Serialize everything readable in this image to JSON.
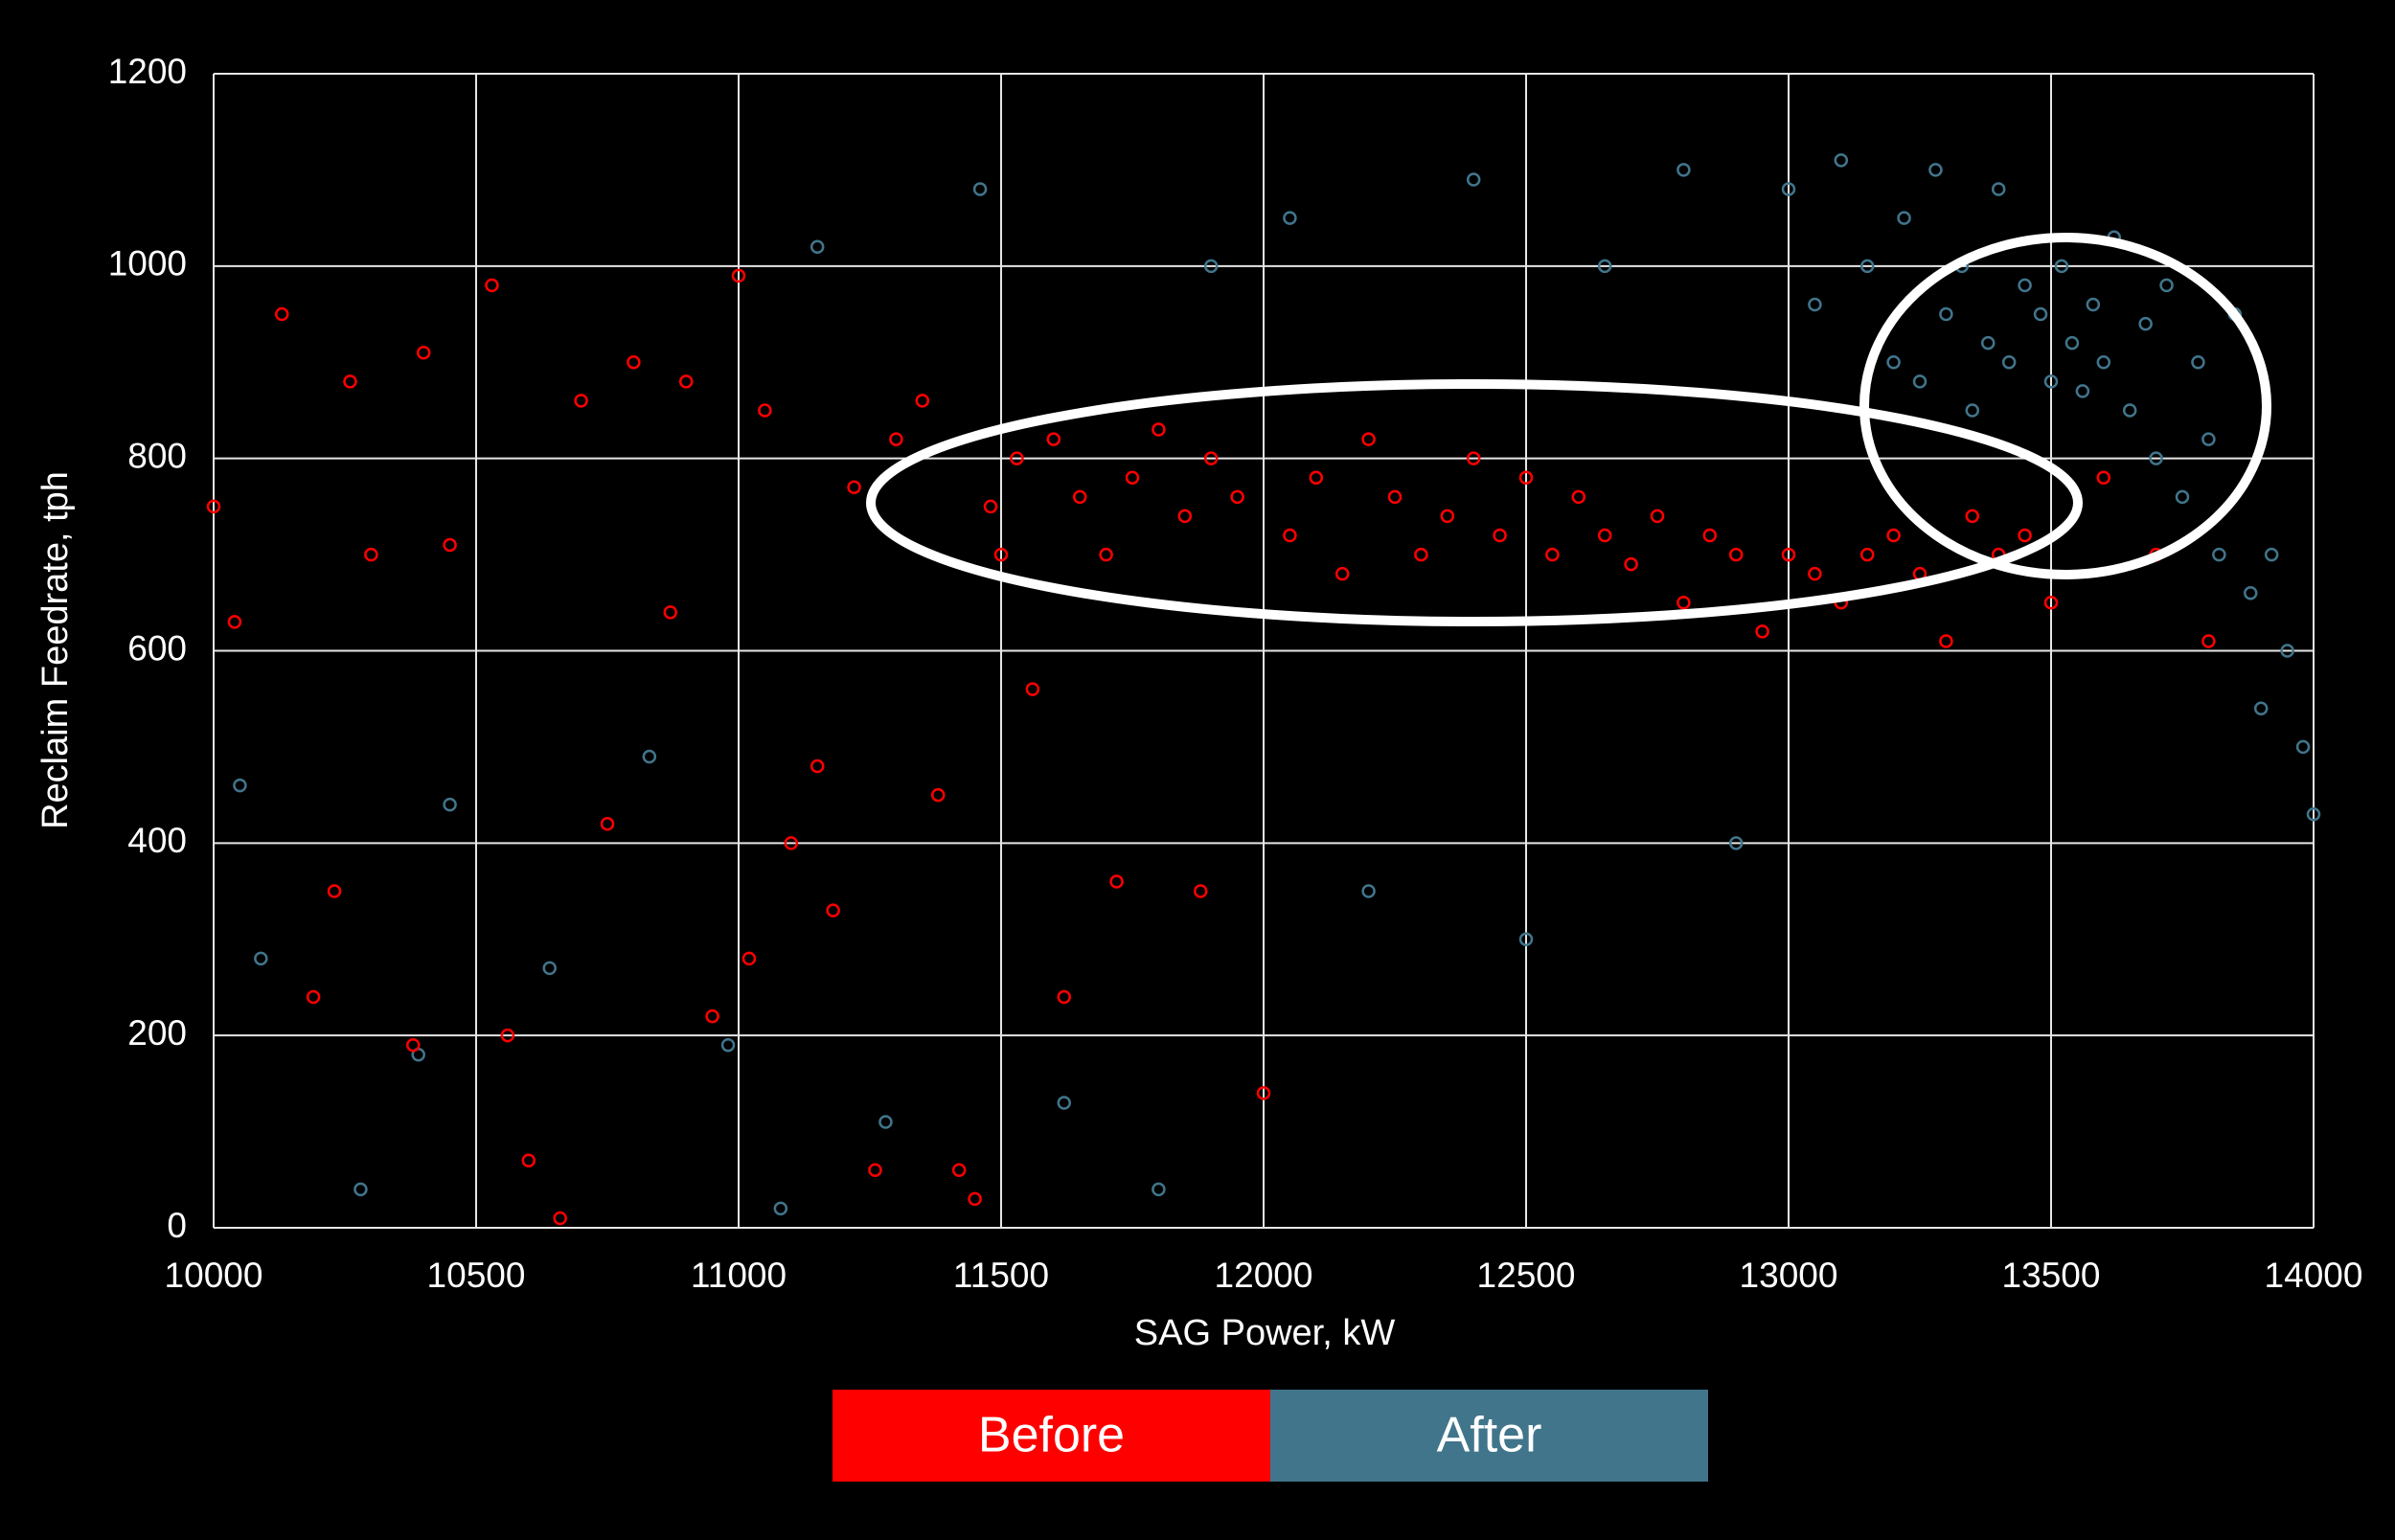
{
  "chart_data": {
    "type": "scatter",
    "x_label": "SAG Power, kW",
    "y_label": "Reclaim Feedrate, tph",
    "xlim": [
      10000,
      14000
    ],
    "xticks": [
      10000,
      10500,
      11000,
      11500,
      12000,
      12500,
      13000,
      13500,
      14000
    ],
    "ylim": [
      0,
      1200
    ],
    "yticks": [
      0,
      200,
      400,
      600,
      800,
      1000,
      1200
    ],
    "grid": true,
    "series": [
      {
        "name": "Before",
        "color": "#ff0000",
        "x": [
          10000,
          10040,
          10130,
          10190,
          10230,
          10260,
          10300,
          10380,
          10400,
          10450,
          10530,
          10560,
          10600,
          10660,
          10700,
          10750,
          10800,
          10870,
          10900,
          10950,
          11000,
          11020,
          11050,
          11100,
          11150,
          11180,
          11220,
          11260,
          11300,
          11350,
          11380,
          11420,
          11450,
          11480,
          11500,
          11530,
          11560,
          11600,
          11620,
          11650,
          11700,
          11720,
          11750,
          11800,
          11850,
          11880,
          11900,
          11950,
          12000,
          12050,
          12100,
          12150,
          12200,
          12250,
          12300,
          12350,
          12400,
          12450,
          12500,
          12550,
          12600,
          12650,
          12700,
          12750,
          12800,
          12850,
          12900,
          12950,
          13000,
          13050,
          13100,
          13150,
          13200,
          13250,
          13300,
          13350,
          13400,
          13450,
          13500,
          13600,
          13700,
          13800
        ],
        "y": [
          750,
          630,
          950,
          240,
          350,
          880,
          700,
          190,
          910,
          710,
          980,
          200,
          70,
          10,
          860,
          420,
          900,
          640,
          880,
          220,
          990,
          280,
          850,
          400,
          480,
          330,
          770,
          60,
          820,
          860,
          450,
          60,
          30,
          750,
          700,
          800,
          560,
          820,
          240,
          760,
          700,
          360,
          780,
          830,
          740,
          350,
          800,
          760,
          140,
          720,
          780,
          680,
          820,
          760,
          700,
          740,
          800,
          720,
          780,
          700,
          760,
          720,
          690,
          740,
          650,
          720,
          700,
          620,
          700,
          680,
          650,
          700,
          720,
          680,
          610,
          740,
          700,
          720,
          650,
          780,
          700,
          610
        ]
      },
      {
        "name": "After",
        "color": "#41758c",
        "x": [
          10050,
          10090,
          10280,
          10390,
          10450,
          10640,
          10830,
          10980,
          11080,
          11150,
          11280,
          11460,
          11620,
          11800,
          11900,
          12050,
          12200,
          12400,
          12500,
          12650,
          12800,
          12900,
          13000,
          13050,
          13100,
          13150,
          13200,
          13220,
          13250,
          13280,
          13300,
          13330,
          13350,
          13380,
          13400,
          13420,
          13450,
          13480,
          13500,
          13520,
          13540,
          13560,
          13580,
          13600,
          13620,
          13650,
          13680,
          13700,
          13720,
          13750,
          13780,
          13800,
          13820,
          13850,
          13880,
          13900,
          13920,
          13950,
          13980,
          14000
        ],
        "y": [
          460,
          280,
          40,
          180,
          440,
          270,
          490,
          190,
          20,
          1020,
          110,
          1080,
          130,
          40,
          1000,
          1050,
          350,
          1090,
          300,
          1000,
          1100,
          400,
          1080,
          960,
          1110,
          1000,
          900,
          1050,
          880,
          1100,
          950,
          1000,
          850,
          920,
          1080,
          900,
          980,
          950,
          880,
          1000,
          920,
          870,
          960,
          900,
          1030,
          850,
          940,
          800,
          980,
          760,
          900,
          820,
          700,
          950,
          660,
          540,
          700,
          600,
          500,
          430
        ]
      }
    ]
  }
}
